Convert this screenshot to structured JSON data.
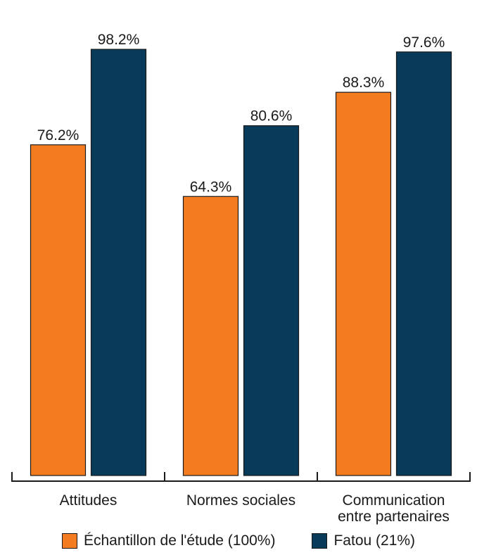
{
  "chart_data": {
    "type": "bar",
    "title": "",
    "xlabel": "",
    "ylabel": "",
    "ylim": [
      0,
      100
    ],
    "grid": false,
    "legend_placement": "bottom",
    "categories": [
      [
        "Attitudes"
      ],
      [
        "Normes sociales"
      ],
      [
        "Communication",
        "entre partenaires"
      ]
    ],
    "series": [
      {
        "name": "Échantillon de l'étude (100%)",
        "color": "#f47c20",
        "values": [
          76.2,
          64.3,
          88.3
        ],
        "labels": [
          "76.2%",
          "64.3%",
          "88.3%"
        ]
      },
      {
        "name": "Fatou (21%)",
        "color": "#083a5a",
        "values": [
          98.2,
          80.6,
          97.6
        ],
        "labels": [
          "98.2%",
          "80.6%",
          "97.6%"
        ]
      }
    ]
  }
}
